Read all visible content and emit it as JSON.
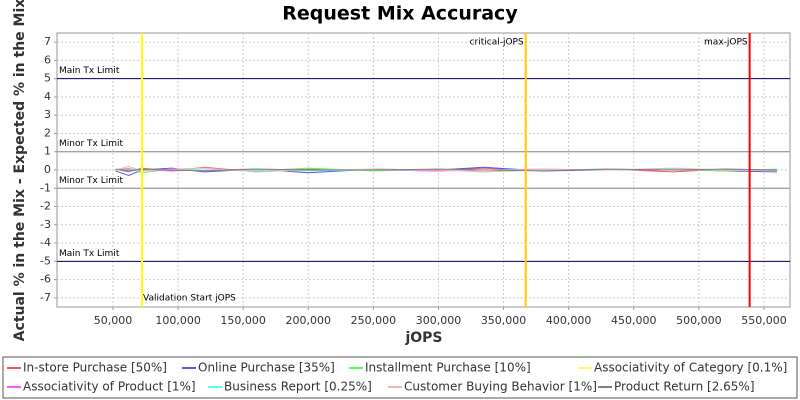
{
  "chart_data": {
    "type": "line",
    "title": "Request Mix Accuracy",
    "x_label": "jOPS",
    "y_label": "Actual % in the Mix - Expected % in the Mix",
    "xlim": [
      7000,
      570000
    ],
    "ylim": [
      -7.5,
      7.5
    ],
    "xticks": [
      {
        "value": 50000,
        "label": "50,000"
      },
      {
        "value": 100000,
        "label": "100,000"
      },
      {
        "value": 150000,
        "label": "150,000"
      },
      {
        "value": 200000,
        "label": "200,000"
      },
      {
        "value": 250000,
        "label": "250,000"
      },
      {
        "value": 300000,
        "label": "300,000"
      },
      {
        "value": 350000,
        "label": "350,000"
      },
      {
        "value": 400000,
        "label": "400,000"
      },
      {
        "value": 450000,
        "label": "450,000"
      },
      {
        "value": 500000,
        "label": "500,000"
      },
      {
        "value": 550000,
        "label": "550,000"
      }
    ],
    "yticks": [
      -7,
      -6,
      -5,
      -4,
      -3,
      -2,
      -1,
      0,
      1,
      2,
      3,
      4,
      5,
      6,
      7
    ],
    "grid": true,
    "limits": [
      {
        "label": "Main Tx Limit",
        "value": 5
      },
      {
        "label": "Minor Tx Limit",
        "value": 1
      },
      {
        "label": "Minor Tx Limit",
        "value": -1
      },
      {
        "label": "Main Tx Limit",
        "value": -5
      }
    ],
    "markers": [
      {
        "label": "Validation Start jOPS",
        "value": 72300,
        "color": "#ffff00"
      },
      {
        "label": "critical-jOPS",
        "value": 367000,
        "color": "#ffc800"
      },
      {
        "label": "max-jOPS",
        "value": 539000,
        "color": "#ff0000"
      }
    ],
    "x": [
      52000,
      62000,
      72000,
      95000,
      120000,
      160000,
      200000,
      250000,
      300000,
      335000,
      380000,
      430000,
      480000,
      520000,
      560000
    ],
    "series": [
      {
        "name": "In-store Purchase [50%]",
        "color": "#ff5555",
        "values": [
          0.05,
          -0.1,
          0.1,
          -0.05,
          0.15,
          -0.1,
          0.05,
          0.0,
          -0.05,
          0.1,
          -0.05,
          0.05,
          -0.1,
          0.05,
          0.0
        ]
      },
      {
        "name": "Online Purchase [35%]",
        "color": "#5555ff",
        "values": [
          -0.05,
          -0.3,
          0.0,
          0.1,
          -0.1,
          0.05,
          -0.15,
          0.05,
          0.0,
          0.15,
          -0.05,
          0.0,
          0.05,
          -0.05,
          -0.1
        ]
      },
      {
        "name": "Installment Purchase [10%]",
        "color": "#55ff55",
        "values": [
          0.0,
          0.1,
          -0.15,
          0.05,
          0.0,
          -0.05,
          0.1,
          -0.05,
          0.05,
          -0.1,
          0.0,
          0.05,
          0.0,
          -0.05,
          0.05
        ]
      },
      {
        "name": "Associativity of Category [0.1%]",
        "color": "#ffff55",
        "values": [
          0.0,
          0.0,
          0.0,
          0.0,
          0.0,
          0.0,
          0.0,
          0.0,
          0.0,
          0.0,
          0.0,
          0.0,
          0.0,
          0.0,
          0.0
        ]
      },
      {
        "name": "Associativity of Product [1%]",
        "color": "#ff55ff",
        "values": [
          0.0,
          0.05,
          0.0,
          -0.05,
          0.0,
          0.05,
          0.0,
          0.0,
          -0.05,
          0.0,
          0.05,
          0.0,
          0.0,
          0.0,
          0.0
        ]
      },
      {
        "name": "Business Report [0.25%]",
        "color": "#55ffff",
        "values": [
          0.0,
          0.0,
          0.05,
          0.0,
          0.0,
          0.0,
          -0.05,
          0.0,
          0.0,
          0.0,
          0.0,
          0.0,
          0.05,
          0.0,
          0.0
        ]
      },
      {
        "name": "Customer Buying Behavior [1%]",
        "color": "#ffafaf",
        "values": [
          0.0,
          0.2,
          -0.05,
          0.05,
          0.1,
          -0.1,
          0.0,
          0.05,
          0.0,
          -0.1,
          0.05,
          0.0,
          0.1,
          0.0,
          -0.05
        ]
      },
      {
        "name": "Product Return [2.65%]",
        "color": "#808080",
        "values": [
          0.05,
          -0.05,
          0.05,
          0.0,
          -0.05,
          0.05,
          0.0,
          0.0,
          0.05,
          0.0,
          -0.05,
          0.05,
          0.0,
          0.05,
          0.0
        ]
      }
    ]
  }
}
